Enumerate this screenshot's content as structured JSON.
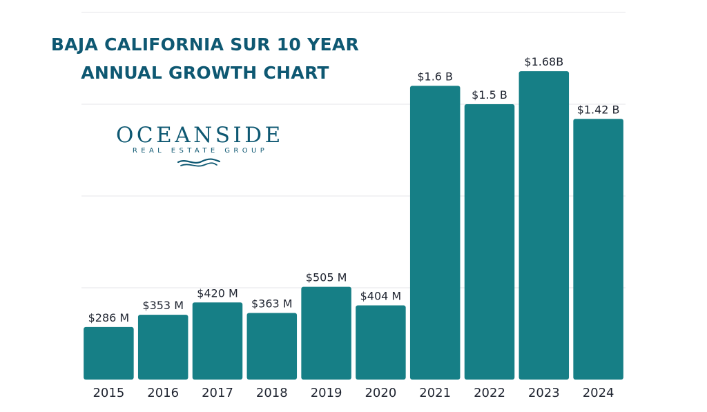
{
  "title": {
    "line1": "BAJA CALIFORNIA SUR 10 YEAR",
    "line2": "ANNUAL GROWTH CHART"
  },
  "logo": {
    "name": "OCEANSIDE",
    "tagline": "REAL ESTATE GROUP"
  },
  "colors": {
    "bar": "#167f86",
    "title": "#0e5872",
    "grid": "#e4e6e8"
  },
  "chart_data": {
    "type": "bar",
    "title": "BAJA CALIFORNIA SUR 10 YEAR ANNUAL GROWTH CHART",
    "xlabel": "",
    "ylabel": "",
    "unit": "USD millions",
    "categories": [
      "2015",
      "2016",
      "2017",
      "2018",
      "2019",
      "2020",
      "2021",
      "2022",
      "2023",
      "2024"
    ],
    "values": [
      286,
      353,
      420,
      363,
      505,
      404,
      1600,
      1500,
      1680,
      1420
    ],
    "data_labels": [
      "$286 M",
      "$353 M",
      "$420 M",
      "$363 M",
      "$505 M",
      "$404 M",
      "$1.6 B",
      "$1.5 B",
      "$1.68B",
      "$1.42 B"
    ],
    "ylim": [
      0,
      2000
    ],
    "gridlines": [
      0,
      500,
      1000,
      1500,
      2000
    ],
    "grid": true,
    "legend": "none"
  }
}
